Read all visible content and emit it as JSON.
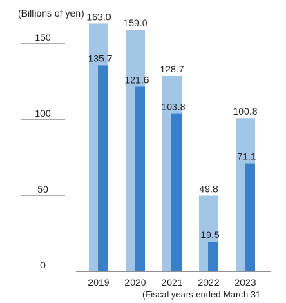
{
  "chart_data": {
    "type": "bar",
    "unit_label": "(Billions of yen)",
    "footnote": "(Fiscal years ended March 31",
    "categories": [
      "2019",
      "2020",
      "2021",
      "2022",
      "2023"
    ],
    "ylim": [
      0,
      150
    ],
    "yticks": [
      "0",
      "50",
      "100",
      "150"
    ],
    "grid": false,
    "series": [
      {
        "values": [
          163.0,
          159.0,
          128.7,
          49.8,
          100.8
        ],
        "labels": [
          "163.0",
          "159.0",
          "128.7",
          "49.8",
          "100.8"
        ],
        "color": "#a3c5e6"
      },
      {
        "values": [
          135.7,
          121.6,
          103.8,
          19.5,
          71.1
        ],
        "labels": [
          "135.7",
          "121.6",
          "103.8",
          "19.5",
          "71.1"
        ],
        "color": "#3a80c8"
      }
    ]
  }
}
